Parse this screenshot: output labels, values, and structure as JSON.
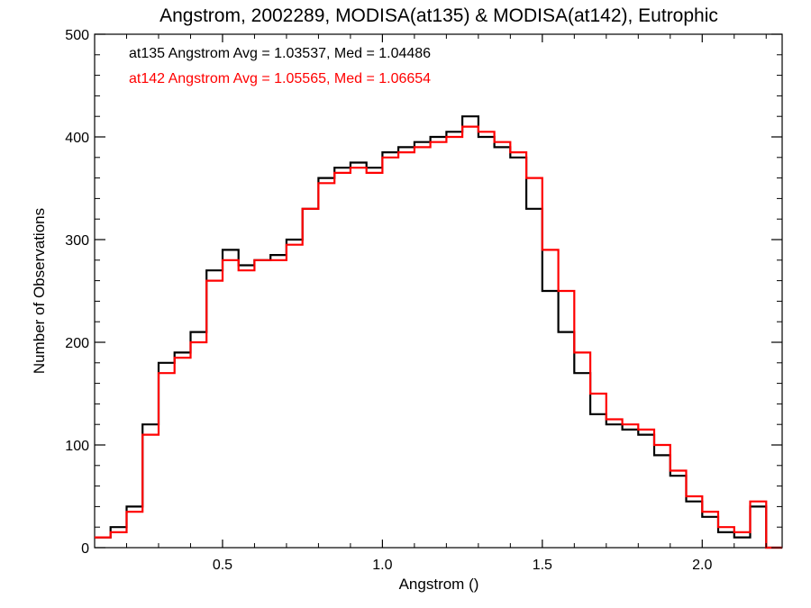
{
  "chart_data": {
    "type": "line",
    "step": true,
    "title": "Angstrom, 2002289, MODISA(at135) & MODISA(at142), Eutrophic",
    "xlabel": "Angstrom ()",
    "ylabel": "Number of Observations",
    "xlim": [
      0.1,
      2.25
    ],
    "ylim": [
      0,
      500
    ],
    "xticks": [
      0.5,
      1.0,
      1.5,
      2.0
    ],
    "xtick_labels": [
      "0.5",
      "1.0",
      "1.5",
      "2.0"
    ],
    "yticks": [
      0,
      100,
      200,
      300,
      400,
      500
    ],
    "ytick_labels": [
      "0",
      "100",
      "200",
      "300",
      "400",
      "500"
    ],
    "grid": false,
    "annotations": [
      {
        "text": "at135 Angstrom Avg = 1.03537, Med = 1.04486",
        "color": "#000000"
      },
      {
        "text": "at142 Angstrom Avg = 1.05565, Med = 1.06654",
        "color": "#ff0000"
      }
    ],
    "series": [
      {
        "color": "#000000",
        "x": [
          0.1,
          0.15,
          0.2,
          0.25,
          0.3,
          0.35,
          0.4,
          0.45,
          0.5,
          0.55,
          0.6,
          0.65,
          0.7,
          0.75,
          0.8,
          0.85,
          0.9,
          0.95,
          1.0,
          1.05,
          1.1,
          1.15,
          1.2,
          1.25,
          1.3,
          1.35,
          1.4,
          1.45,
          1.5,
          1.55,
          1.6,
          1.65,
          1.7,
          1.75,
          1.8,
          1.85,
          1.9,
          1.95,
          2.0,
          2.05,
          2.1,
          2.15,
          2.2,
          2.25
        ],
        "values": [
          10,
          20,
          40,
          120,
          180,
          190,
          210,
          270,
          290,
          275,
          280,
          285,
          300,
          330,
          360,
          370,
          375,
          370,
          385,
          390,
          395,
          400,
          405,
          420,
          400,
          390,
          380,
          330,
          250,
          210,
          170,
          130,
          120,
          115,
          110,
          90,
          70,
          45,
          30,
          15,
          10,
          40,
          0,
          0
        ]
      },
      {
        "color": "#ff0000",
        "x": [
          0.1,
          0.15,
          0.2,
          0.25,
          0.3,
          0.35,
          0.4,
          0.45,
          0.5,
          0.55,
          0.6,
          0.65,
          0.7,
          0.75,
          0.8,
          0.85,
          0.9,
          0.95,
          1.0,
          1.05,
          1.1,
          1.15,
          1.2,
          1.25,
          1.3,
          1.35,
          1.4,
          1.45,
          1.5,
          1.55,
          1.6,
          1.65,
          1.7,
          1.75,
          1.8,
          1.85,
          1.9,
          1.95,
          2.0,
          2.05,
          2.1,
          2.15,
          2.2,
          2.25
        ],
        "values": [
          10,
          15,
          35,
          110,
          170,
          185,
          200,
          260,
          280,
          270,
          280,
          280,
          295,
          330,
          355,
          365,
          370,
          365,
          380,
          385,
          390,
          395,
          400,
          410,
          405,
          395,
          385,
          360,
          290,
          250,
          190,
          150,
          125,
          120,
          115,
          100,
          75,
          50,
          35,
          20,
          15,
          45,
          0,
          0
        ]
      }
    ]
  }
}
